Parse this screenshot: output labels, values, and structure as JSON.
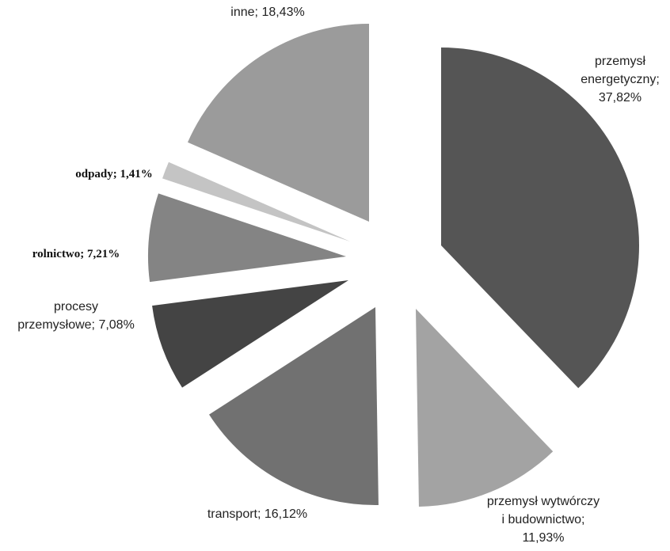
{
  "chart_data": {
    "type": "pie",
    "slices": [
      {
        "label_lines": [
          "przemysł",
          "energetyczny;",
          "37,82%"
        ],
        "value": 37.82,
        "color": "#555555",
        "label_style": "sans"
      },
      {
        "label_lines": [
          "przemysł wytwórczy",
          "i budownictwo;",
          "11,93%"
        ],
        "value": 11.93,
        "color": "#a3a3a3",
        "label_style": "sans"
      },
      {
        "label_lines": [
          "transport; 16,12%"
        ],
        "value": 16.12,
        "color": "#717171",
        "label_style": "sans"
      },
      {
        "label_lines": [
          "procesy",
          "przemysłowe; 7,08%"
        ],
        "value": 7.08,
        "color": "#444444",
        "label_style": "sans"
      },
      {
        "label_lines": [
          "rolnictwo; 7,21%"
        ],
        "value": 7.21,
        "color": "#848484",
        "label_style": "serif"
      },
      {
        "label_lines": [
          "odpady; 1,41%"
        ],
        "value": 1.41,
        "color": "#c4c4c4",
        "label_style": "serif"
      },
      {
        "label_lines": [
          "inne; 18,43%"
        ],
        "value": 18.43,
        "color": "#9b9b9b",
        "label_style": "sans"
      }
    ]
  }
}
